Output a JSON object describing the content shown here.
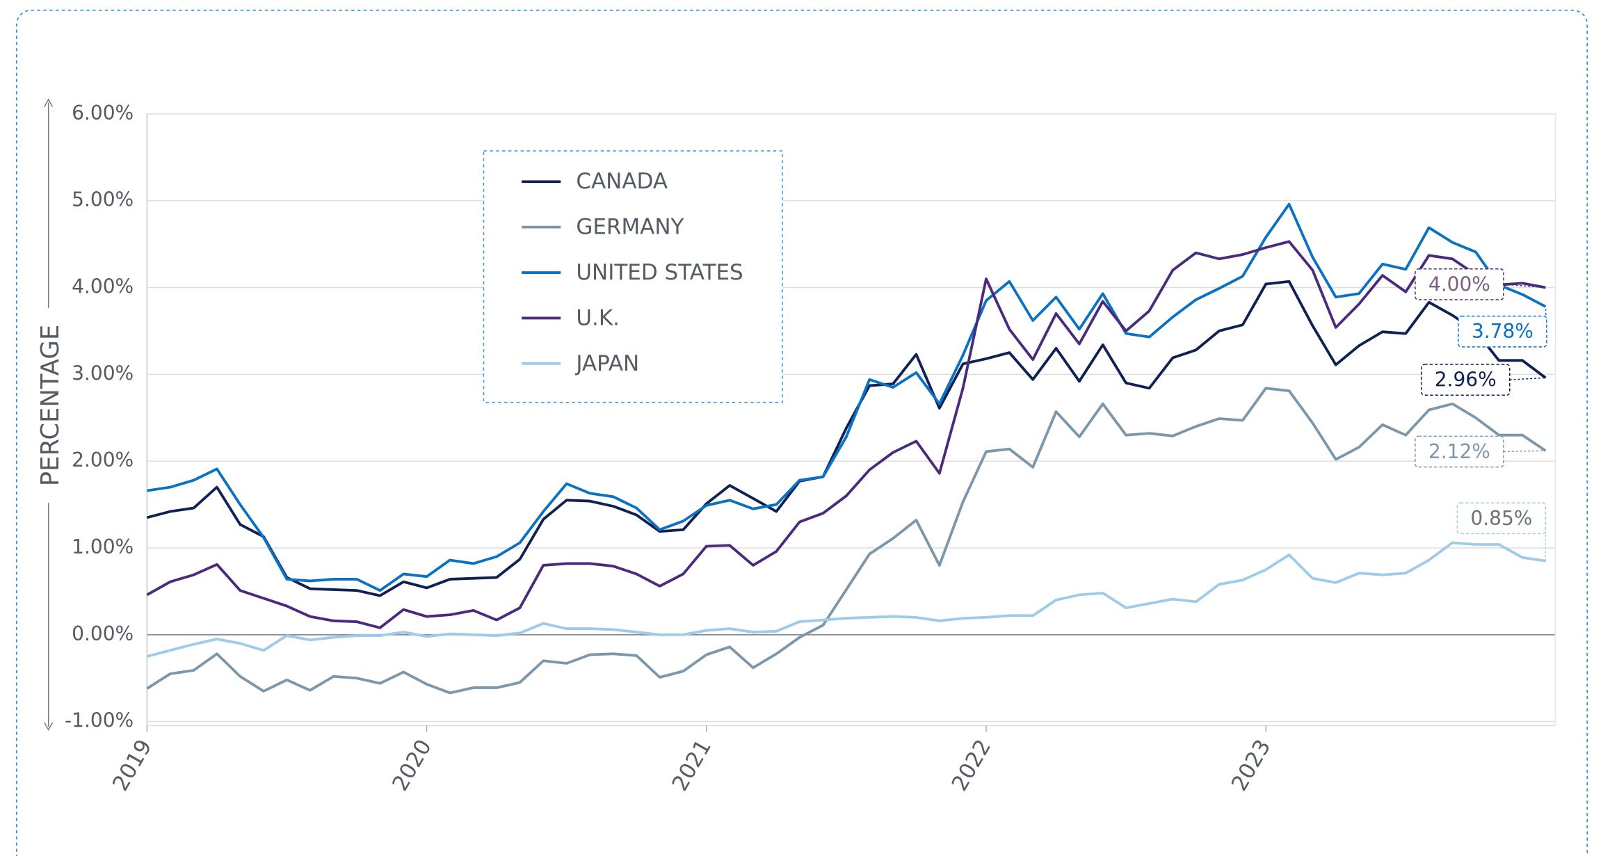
{
  "chart_data": {
    "type": "line",
    "y_label": "PERCENTAGE",
    "x": [
      2019,
      2019.083,
      2019.167,
      2019.25,
      2019.333,
      2019.417,
      2019.5,
      2019.583,
      2019.667,
      2019.75,
      2019.833,
      2019.917,
      2020,
      2020.083,
      2020.167,
      2020.25,
      2020.333,
      2020.417,
      2020.5,
      2020.583,
      2020.667,
      2020.75,
      2020.833,
      2020.917,
      2021,
      2021.083,
      2021.167,
      2021.25,
      2021.333,
      2021.417,
      2021.5,
      2021.583,
      2021.667,
      2021.75,
      2021.833,
      2021.917,
      2022,
      2022.083,
      2022.167,
      2022.25,
      2022.333,
      2022.417,
      2022.5,
      2022.583,
      2022.667,
      2022.75,
      2022.833,
      2022.917,
      2023,
      2023.083,
      2023.167,
      2023.25,
      2023.333,
      2023.417,
      2023.5,
      2023.583,
      2023.667,
      2023.75,
      2023.833,
      2023.917,
      2024
    ],
    "xlim": [
      2019,
      2024.035
    ],
    "xticks": [
      2019,
      2020,
      2021,
      2022,
      2023
    ],
    "ylim": [
      -1,
      6
    ],
    "yticks": [
      {
        "value": -1,
        "label": "-1.00%"
      },
      {
        "value": 0,
        "label": "0.00%"
      },
      {
        "value": 1,
        "label": "1.00%"
      },
      {
        "value": 2,
        "label": "2.00%"
      },
      {
        "value": 3,
        "label": "3.00%"
      },
      {
        "value": 4,
        "label": "4.00%"
      },
      {
        "value": 5,
        "label": "5.00%"
      },
      {
        "value": 6,
        "label": "6.00%"
      }
    ],
    "grid": true,
    "series": [
      {
        "name": "CANADA",
        "color": "#0f2153",
        "values": [
          1.35,
          1.42,
          1.46,
          1.7,
          1.27,
          1.13,
          0.66,
          0.53,
          0.52,
          0.51,
          0.45,
          0.61,
          0.54,
          0.64,
          0.65,
          0.66,
          0.87,
          1.33,
          1.55,
          1.54,
          1.48,
          1.38,
          1.19,
          1.21,
          1.51,
          1.72,
          1.57,
          1.42,
          1.77,
          1.82,
          2.38,
          2.87,
          2.89,
          3.23,
          2.61,
          3.12,
          3.18,
          3.25,
          2.94,
          3.3,
          2.92,
          3.34,
          2.9,
          2.84,
          3.19,
          3.28,
          3.5,
          3.57,
          4.04,
          4.07,
          3.56,
          3.11,
          3.33,
          3.49,
          3.47,
          3.83,
          3.68,
          3.5,
          3.16,
          3.16,
          2.96
        ],
        "value_labels": [
          null,
          null,
          null,
          null,
          null,
          null,
          null,
          null,
          null,
          null,
          null,
          null,
          null,
          null,
          null,
          null,
          null,
          null,
          null,
          null,
          null,
          null,
          null,
          null,
          null,
          null,
          null,
          null,
          null,
          null,
          null,
          null,
          null,
          null,
          null,
          null,
          null,
          null,
          null,
          null,
          null,
          null,
          null,
          null,
          null,
          null,
          null,
          null,
          null,
          null,
          null,
          null,
          null,
          null,
          null,
          null,
          null,
          null,
          null,
          null,
          "2.96%"
        ]
      },
      {
        "name": "GERMANY",
        "color": "#7b97a9",
        "values": [
          -0.62,
          -0.45,
          -0.41,
          -0.22,
          -0.48,
          -0.65,
          -0.52,
          -0.64,
          -0.48,
          -0.5,
          -0.56,
          -0.43,
          -0.57,
          -0.67,
          -0.61,
          -0.61,
          -0.55,
          -0.3,
          -0.33,
          -0.23,
          -0.22,
          -0.24,
          -0.49,
          -0.42,
          -0.23,
          -0.14,
          -0.38,
          -0.22,
          -0.03,
          0.11,
          0.52,
          0.93,
          1.11,
          1.32,
          0.8,
          1.53,
          2.11,
          2.14,
          1.93,
          2.57,
          2.28,
          2.66,
          2.3,
          2.32,
          2.29,
          2.4,
          2.49,
          2.47,
          2.84,
          2.81,
          2.44,
          2.02,
          2.16,
          2.42,
          2.3,
          2.59,
          2.66,
          2.5,
          2.3,
          2.3,
          2.12
        ],
        "value_labels": [
          null,
          null,
          null,
          null,
          null,
          null,
          null,
          null,
          null,
          null,
          null,
          null,
          null,
          null,
          null,
          null,
          null,
          null,
          null,
          null,
          null,
          null,
          null,
          null,
          null,
          null,
          null,
          null,
          null,
          null,
          null,
          null,
          null,
          null,
          null,
          null,
          null,
          null,
          null,
          null,
          null,
          null,
          null,
          null,
          null,
          null,
          null,
          null,
          null,
          null,
          null,
          null,
          null,
          null,
          null,
          null,
          null,
          null,
          null,
          null,
          "2.12%"
        ]
      },
      {
        "name": "UNITED STATES",
        "color": "#0b72c3",
        "values": [
          1.66,
          1.7,
          1.78,
          1.91,
          1.5,
          1.12,
          0.64,
          0.62,
          0.64,
          0.64,
          0.51,
          0.7,
          0.67,
          0.86,
          0.82,
          0.9,
          1.06,
          1.42,
          1.74,
          1.63,
          1.59,
          1.46,
          1.21,
          1.31,
          1.49,
          1.55,
          1.45,
          1.5,
          1.78,
          1.82,
          2.28,
          2.94,
          2.85,
          3.02,
          2.66,
          3.22,
          3.85,
          4.07,
          3.62,
          3.89,
          3.52,
          3.93,
          3.47,
          3.43,
          3.66,
          3.86,
          3.99,
          4.13,
          4.58,
          4.96,
          4.35,
          3.89,
          3.93,
          4.27,
          4.21,
          4.69,
          4.52,
          4.41,
          4.03,
          3.92,
          3.78
        ],
        "value_labels": [
          null,
          null,
          null,
          null,
          null,
          null,
          null,
          null,
          null,
          null,
          null,
          null,
          null,
          null,
          null,
          null,
          null,
          null,
          null,
          null,
          null,
          null,
          null,
          null,
          null,
          null,
          null,
          null,
          null,
          null,
          null,
          null,
          null,
          null,
          null,
          null,
          null,
          null,
          null,
          null,
          null,
          null,
          null,
          null,
          null,
          null,
          null,
          null,
          null,
          null,
          null,
          null,
          null,
          null,
          null,
          null,
          null,
          null,
          null,
          null,
          "3.78%"
        ]
      },
      {
        "name": "U.K.",
        "color": "#4a2a7c",
        "values": [
          0.46,
          0.61,
          0.69,
          0.81,
          0.51,
          0.42,
          0.33,
          0.21,
          0.16,
          0.15,
          0.08,
          0.29,
          0.21,
          0.23,
          0.28,
          0.17,
          0.31,
          0.8,
          0.82,
          0.82,
          0.79,
          0.7,
          0.56,
          0.7,
          1.02,
          1.03,
          0.8,
          0.96,
          1.3,
          1.4,
          1.6,
          1.9,
          2.1,
          2.23,
          1.86,
          2.84,
          4.1,
          3.52,
          3.17,
          3.7,
          3.35,
          3.84,
          3.5,
          3.73,
          4.2,
          4.4,
          4.33,
          4.38,
          4.46,
          4.53,
          4.2,
          3.54,
          3.81,
          4.14,
          3.95,
          4.37,
          4.33,
          4.15,
          4.03,
          4.05,
          4.0
        ],
        "value_labels": [
          null,
          null,
          null,
          null,
          null,
          null,
          null,
          null,
          null,
          null,
          null,
          null,
          null,
          null,
          null,
          null,
          null,
          null,
          null,
          null,
          null,
          null,
          null,
          null,
          null,
          null,
          null,
          null,
          null,
          null,
          null,
          null,
          null,
          null,
          null,
          null,
          null,
          null,
          null,
          null,
          null,
          null,
          null,
          null,
          null,
          null,
          null,
          null,
          null,
          null,
          null,
          null,
          null,
          null,
          null,
          null,
          null,
          null,
          null,
          null,
          "4.00%"
        ]
      },
      {
        "name": "JAPAN",
        "color": "#9dcbe9",
        "values": [
          -0.25,
          -0.18,
          -0.11,
          -0.05,
          -0.1,
          -0.18,
          -0.01,
          -0.06,
          -0.03,
          -0.01,
          -0.01,
          0.03,
          -0.02,
          0.01,
          0.0,
          -0.01,
          0.02,
          0.13,
          0.07,
          0.07,
          0.06,
          0.03,
          0.0,
          0.0,
          0.05,
          0.07,
          0.03,
          0.04,
          0.15,
          0.17,
          0.19,
          0.2,
          0.21,
          0.2,
          0.16,
          0.19,
          0.2,
          0.22,
          0.22,
          0.4,
          0.46,
          0.48,
          0.31,
          0.36,
          0.41,
          0.38,
          0.58,
          0.63,
          0.75,
          0.92,
          0.65,
          0.6,
          0.71,
          0.69,
          0.71,
          0.86,
          1.06,
          1.04,
          1.04,
          0.89,
          0.85
        ],
        "value_labels": [
          null,
          null,
          null,
          null,
          null,
          null,
          null,
          null,
          null,
          null,
          null,
          null,
          null,
          null,
          null,
          null,
          null,
          null,
          null,
          null,
          null,
          null,
          null,
          null,
          null,
          null,
          null,
          null,
          null,
          null,
          null,
          null,
          null,
          null,
          null,
          null,
          null,
          null,
          null,
          null,
          null,
          null,
          null,
          null,
          null,
          null,
          null,
          null,
          null,
          null,
          null,
          null,
          null,
          null,
          null,
          null,
          null,
          null,
          null,
          null,
          "0.85%"
        ]
      }
    ]
  }
}
